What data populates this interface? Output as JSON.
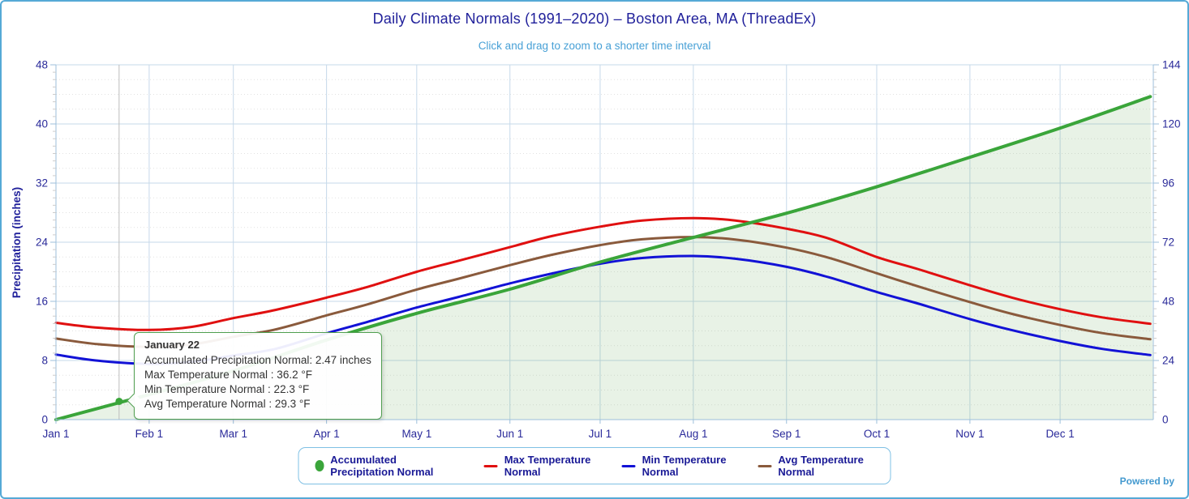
{
  "page": {
    "title": "Daily Climate Normals (1991–2020) – Boston Area, MA (ThreadEx)",
    "subtitle": "Click and drag to zoom to a shorter time interval",
    "powered_by": "Powered by",
    "accent_border_color": "#55a9d6",
    "title_color": "#21219b",
    "subtitle_color": "#47a0d6"
  },
  "tooltip": {
    "date": "January 22",
    "lines": [
      "Accumulated Precipitation Normal: 2.47 inches",
      "Max Temperature Normal : 36.2 °F",
      "Min Temperature Normal : 22.3 °F",
      "Avg Temperature Normal : 29.3 °F"
    ]
  },
  "chart_data": {
    "type": "line",
    "title": "Daily Climate Normals (1991–2020) – Boston Area, MA (ThreadEx)",
    "subtitle": "Click and drag to zoom to a shorter time interval",
    "grid": true,
    "legend_position": "bottom",
    "y_left": {
      "label": "Precipitation (inches)",
      "ticks": [
        0,
        8,
        16,
        24,
        32,
        40,
        48
      ],
      "range": [
        0,
        48
      ]
    },
    "y_right": {
      "label": "",
      "ticks": [
        0,
        24,
        48,
        72,
        96,
        120,
        144
      ],
      "range": [
        0,
        144
      ]
    },
    "x": {
      "tick_labels": [
        "Jan 1",
        "Feb 1",
        "Mar 1",
        "Apr 1",
        "May 1",
        "Jun 1",
        "Jul 1",
        "Aug 1",
        "Sep 1",
        "Oct 1",
        "Nov 1",
        "Dec 1"
      ],
      "tick_days": [
        0,
        31,
        59,
        90,
        120,
        151,
        181,
        212,
        243,
        273,
        304,
        334
      ],
      "range_days": [
        0,
        365
      ]
    },
    "colors": {
      "grid_major": "#c6d9ea",
      "grid_minor": "#e2e2e2",
      "axis_line": "#9cbfdb",
      "crosshair": "#bcbcbc",
      "area_fill": "rgba(100,170,90,0.15)",
      "tick_label": "#2a2a9a"
    },
    "highlighted_point": {
      "series": "Accumulated Precipitation Normal",
      "date": "January 22",
      "day": 21,
      "value_inches": 2.47,
      "max_f": 36.2,
      "min_f": 22.3,
      "avg_f": 29.3
    },
    "series": [
      {
        "name": "Accumulated Precipitation Normal",
        "color": "#3aa53a",
        "axis": "left",
        "marker": "circle",
        "fill": true,
        "width": 4,
        "days": [
          0,
          31,
          59,
          90,
          120,
          151,
          181,
          212,
          243,
          273,
          304,
          334,
          364
        ],
        "values": [
          0.0,
          3.39,
          6.6,
          10.77,
          14.38,
          17.64,
          21.31,
          24.65,
          27.92,
          31.5,
          35.5,
          39.44,
          43.69
        ]
      },
      {
        "name": "Max Temperature Normal",
        "color": "#e01010",
        "axis": "right",
        "marker": "line",
        "fill": false,
        "width": 3,
        "days": [
          0,
          14,
          31,
          45,
          59,
          73,
          90,
          104,
          120,
          134,
          151,
          165,
          181,
          195,
          212,
          226,
          243,
          257,
          273,
          287,
          304,
          318,
          334,
          348,
          364
        ],
        "values": [
          39.3,
          37.3,
          36.4,
          37.6,
          41.2,
          44.5,
          49.5,
          54.0,
          60.0,
          64.5,
          70.0,
          74.5,
          78.3,
          80.8,
          81.8,
          80.8,
          77.5,
          73.5,
          66.0,
          61.0,
          54.5,
          49.5,
          44.8,
          41.5,
          38.9
        ]
      },
      {
        "name": "Min Temperature Normal",
        "color": "#1212d6",
        "axis": "right",
        "marker": "line",
        "fill": false,
        "width": 3,
        "days": [
          0,
          14,
          31,
          45,
          59,
          73,
          90,
          104,
          120,
          134,
          151,
          165,
          181,
          195,
          212,
          226,
          243,
          257,
          273,
          287,
          304,
          318,
          334,
          348,
          364
        ],
        "values": [
          26.4,
          23.9,
          22.6,
          23.4,
          26.0,
          28.7,
          35.0,
          39.8,
          45.5,
          49.8,
          55.3,
          59.3,
          63.3,
          65.6,
          66.4,
          65.3,
          62.0,
          57.8,
          51.8,
          47.0,
          40.8,
          36.3,
          31.9,
          28.7,
          26.2
        ]
      },
      {
        "name": "Avg Temperature Normal",
        "color": "#8a5a3c",
        "axis": "right",
        "marker": "line",
        "fill": false,
        "width": 3,
        "days": [
          0,
          14,
          31,
          45,
          59,
          73,
          90,
          104,
          120,
          134,
          151,
          165,
          181,
          195,
          212,
          226,
          243,
          257,
          273,
          287,
          304,
          318,
          334,
          348,
          364
        ],
        "values": [
          32.9,
          30.6,
          29.5,
          30.5,
          33.6,
          36.6,
          42.3,
          46.9,
          52.8,
          57.2,
          62.7,
          66.9,
          70.8,
          73.2,
          74.1,
          73.1,
          69.8,
          65.7,
          59.4,
          54.0,
          47.7,
          42.9,
          38.4,
          35.1,
          32.6
        ]
      }
    ]
  }
}
